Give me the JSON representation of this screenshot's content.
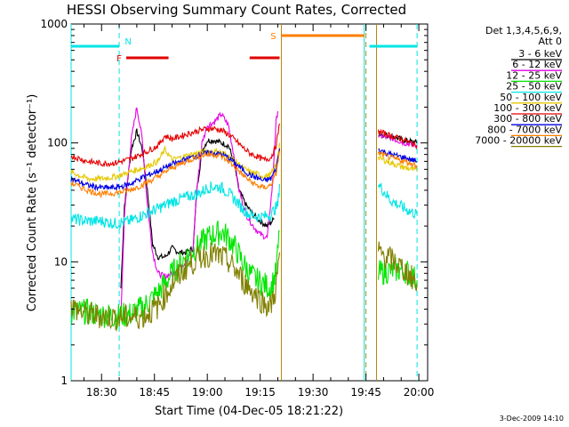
{
  "chart_data": {
    "type": "line",
    "title": "HESSI Observing Summary Count Rates, Corrected",
    "xlabel": "Start Time (04-Dec-05 18:21:22)",
    "ylabel": "Corrected Count Rate (s⁻¹ detector⁻¹)",
    "ylog": true,
    "ylim": [
      1,
      1000
    ],
    "yticks": [
      {
        "v": 1,
        "label": "1"
      },
      {
        "v": 10,
        "label": "10"
      },
      {
        "v": 100,
        "label": "100"
      },
      {
        "v": 1000,
        "label": "1000"
      }
    ],
    "xlim": [
      "18:21:22",
      "20:02:30"
    ],
    "xticks": [
      "18:30",
      "18:45",
      "19:00",
      "19:15",
      "19:30",
      "19:45",
      "20:00"
    ],
    "legend_title": [
      "Det 1,3,4,5,6,9,",
      "Att 0"
    ],
    "footer_date": "3-Dec-2009 14:10",
    "data_gap": [
      "19:21:30",
      "19:48:00"
    ],
    "flags": [
      {
        "label": "N",
        "color": "#00e5e5",
        "y": 650,
        "segments": [
          [
            "18:21:22",
            "18:35:00"
          ],
          [
            "19:46:00",
            "19:59:30"
          ]
        ]
      },
      {
        "label": "F",
        "color": "#e00000",
        "y": 520,
        "segments": [
          [
            "18:37:00",
            "18:49:00"
          ],
          [
            "19:12:00",
            "19:20:30"
          ]
        ]
      },
      {
        "label": "S",
        "color": "#ff7f00",
        "y": 800,
        "segments": [
          [
            "19:21:00",
            "19:44:30"
          ]
        ]
      }
    ],
    "vlines": [
      {
        "t": "18:21:22",
        "color": "#00e5e5",
        "dashed": false
      },
      {
        "t": "18:35:00",
        "color": "#00e5e5",
        "dashed": true
      },
      {
        "t": "19:21:00",
        "color": "#b8860b",
        "dashed": false
      },
      {
        "t": "19:44:30",
        "color": "#00e5e5",
        "dashed": false
      },
      {
        "t": "19:45:00",
        "color": "#b8860b",
        "dashed": true
      },
      {
        "t": "19:48:00",
        "color": "#b8860b",
        "dashed": false
      },
      {
        "t": "19:59:30",
        "color": "#00e5e5",
        "dashed": true
      }
    ],
    "series": [
      {
        "name": "3 - 6 keV",
        "color": "#000000",
        "points": [
          [
            "18:35:30",
            6
          ],
          [
            "18:36:30",
            30
          ],
          [
            "18:38:30",
            90
          ],
          [
            "18:40:00",
            125
          ],
          [
            "18:41:30",
            90
          ],
          [
            "18:43:00",
            40
          ],
          [
            "18:44:30",
            14
          ],
          [
            "18:46:00",
            11
          ],
          [
            "18:48:00",
            11
          ],
          [
            "18:50:00",
            13
          ],
          [
            "18:52:00",
            12
          ],
          [
            "18:54:00",
            12
          ],
          [
            "18:56:00",
            13
          ],
          [
            "18:57:00",
            40
          ],
          [
            "18:58:30",
            85
          ],
          [
            "19:00:00",
            105
          ],
          [
            "19:02:00",
            105
          ],
          [
            "19:04:00",
            100
          ],
          [
            "19:06:00",
            95
          ],
          [
            "19:07:30",
            70
          ],
          [
            "19:09:00",
            40
          ],
          [
            "19:11:00",
            30
          ],
          [
            "19:13:00",
            25
          ],
          [
            "19:15:00",
            22
          ],
          [
            "19:17:00",
            20
          ],
          [
            "19:19:00",
            23
          ]
        ],
        "points2": [
          [
            "19:48:30",
            120
          ],
          [
            "19:52:00",
            115
          ],
          [
            "19:56:00",
            105
          ],
          [
            "19:59:30",
            100
          ]
        ]
      },
      {
        "name": "6 - 12 keV",
        "color": "#e600e6",
        "points": [
          [
            "18:35:30",
            3.5
          ],
          [
            "18:36:30",
            25
          ],
          [
            "18:38:30",
            110
          ],
          [
            "18:40:00",
            200
          ],
          [
            "18:41:30",
            110
          ],
          [
            "18:43:00",
            30
          ],
          [
            "18:44:30",
            12
          ],
          [
            "18:46:00",
            8
          ],
          [
            "18:48:00",
            7.5
          ],
          [
            "18:50:00",
            8
          ],
          [
            "18:52:00",
            9
          ],
          [
            "18:54:00",
            10
          ],
          [
            "18:56:00",
            13
          ],
          [
            "18:57:00",
            40
          ],
          [
            "18:58:30",
            100
          ],
          [
            "19:00:00",
            140
          ],
          [
            "19:02:00",
            150
          ],
          [
            "19:04:00",
            175
          ],
          [
            "19:06:00",
            140
          ],
          [
            "19:07:30",
            80
          ],
          [
            "19:09:00",
            40
          ],
          [
            "19:11:00",
            25
          ],
          [
            "19:13:00",
            20
          ],
          [
            "19:15:00",
            17
          ],
          [
            "19:17:00",
            16
          ],
          [
            "19:18:30",
            45
          ],
          [
            "19:19:30",
            150
          ],
          [
            "19:20:00",
            185
          ]
        ],
        "points2": [
          [
            "19:48:30",
            115
          ],
          [
            "19:52:00",
            110
          ],
          [
            "19:56:00",
            100
          ],
          [
            "19:59:30",
            95
          ]
        ]
      },
      {
        "name": "12 - 25 keV",
        "color": "#00e600",
        "points": [
          [
            "18:21:22",
            3.8
          ],
          [
            "18:26:00",
            3.8
          ],
          [
            "18:30:00",
            3.6
          ],
          [
            "18:34:00",
            3.5
          ],
          [
            "18:38:00",
            3.6
          ],
          [
            "18:42:00",
            4.2
          ],
          [
            "18:46:00",
            5.5
          ],
          [
            "18:50:00",
            8
          ],
          [
            "18:54:00",
            11
          ],
          [
            "18:58:00",
            14
          ],
          [
            "19:00:00",
            16
          ],
          [
            "19:02:00",
            17
          ],
          [
            "19:04:00",
            18
          ],
          [
            "19:06:00",
            16
          ],
          [
            "19:08:00",
            13
          ],
          [
            "19:10:00",
            10
          ],
          [
            "19:12:00",
            8
          ],
          [
            "19:14:00",
            7
          ],
          [
            "19:16:00",
            6.5
          ],
          [
            "19:18:00",
            6
          ],
          [
            "19:19:30",
            8
          ],
          [
            "19:20:30",
            18
          ]
        ],
        "points2": [
          [
            "19:48:30",
            8
          ],
          [
            "19:52:00",
            8.5
          ],
          [
            "19:56:00",
            8.5
          ],
          [
            "19:59:30",
            7
          ]
        ]
      },
      {
        "name": "25 - 50 keV",
        "color": "#00e5e5",
        "points": [
          [
            "18:21:22",
            23
          ],
          [
            "18:26:00",
            22
          ],
          [
            "18:30:00",
            22
          ],
          [
            "18:34:00",
            21
          ],
          [
            "18:38:00",
            22
          ],
          [
            "18:42:00",
            25
          ],
          [
            "18:46:00",
            28
          ],
          [
            "18:50:00",
            32
          ],
          [
            "18:54:00",
            35
          ],
          [
            "18:58:00",
            38
          ],
          [
            "19:00:00",
            42
          ],
          [
            "19:02:00",
            43
          ],
          [
            "19:04:00",
            42
          ],
          [
            "19:06:00",
            38
          ],
          [
            "19:08:00",
            33
          ],
          [
            "19:10:00",
            28
          ],
          [
            "19:12:00",
            25
          ],
          [
            "19:14:00",
            24
          ],
          [
            "19:16:00",
            24
          ],
          [
            "19:18:00",
            25
          ],
          [
            "19:20:00",
            30
          ],
          [
            "19:20:30",
            45
          ]
        ],
        "points2": [
          [
            "19:48:30",
            45
          ],
          [
            "19:52:00",
            33
          ],
          [
            "19:56:00",
            28
          ],
          [
            "19:59:30",
            25
          ]
        ]
      },
      {
        "name": "50 - 100 keV",
        "color": "#e6c800",
        "points": [
          [
            "18:21:22",
            57
          ],
          [
            "18:26:00",
            50
          ],
          [
            "18:30:00",
            50
          ],
          [
            "18:34:00",
            52
          ],
          [
            "18:38:00",
            57
          ],
          [
            "18:42:00",
            62
          ],
          [
            "18:46:00",
            70
          ],
          [
            "18:48:00",
            88
          ],
          [
            "18:50:00",
            72
          ],
          [
            "18:54:00",
            78
          ],
          [
            "18:58:00",
            83
          ],
          [
            "19:00:00",
            85
          ],
          [
            "19:02:00",
            85
          ],
          [
            "19:04:00",
            83
          ],
          [
            "19:06:00",
            78
          ],
          [
            "19:08:00",
            70
          ],
          [
            "19:10:00",
            62
          ],
          [
            "19:12:00",
            57
          ],
          [
            "19:14:00",
            55
          ],
          [
            "19:16:00",
            52
          ],
          [
            "19:18:00",
            54
          ],
          [
            "19:19:30",
            65
          ],
          [
            "19:20:30",
            100
          ]
        ],
        "points2": [
          [
            "19:48:30",
            75
          ],
          [
            "19:52:00",
            68
          ],
          [
            "19:56:00",
            62
          ],
          [
            "19:59:30",
            58
          ]
        ]
      },
      {
        "name": "100 - 300 keV",
        "color": "#e60000",
        "points": [
          [
            "18:21:22",
            78
          ],
          [
            "18:26:00",
            70
          ],
          [
            "18:30:00",
            67
          ],
          [
            "18:34:00",
            68
          ],
          [
            "18:38:00",
            73
          ],
          [
            "18:42:00",
            82
          ],
          [
            "18:46:00",
            95
          ],
          [
            "18:48:00",
            115
          ],
          [
            "18:50:00",
            108
          ],
          [
            "18:54:00",
            118
          ],
          [
            "18:58:00",
            128
          ],
          [
            "19:00:00",
            132
          ],
          [
            "19:02:00",
            132
          ],
          [
            "19:04:00",
            128
          ],
          [
            "19:06:00",
            118
          ],
          [
            "19:08:00",
            105
          ],
          [
            "19:10:00",
            92
          ],
          [
            "19:12:00",
            82
          ],
          [
            "19:14:00",
            77
          ],
          [
            "19:16:00",
            72
          ],
          [
            "19:18:00",
            75
          ],
          [
            "19:19:30",
            95
          ],
          [
            "19:20:30",
            145
          ]
        ],
        "points2": [
          [
            "19:48:30",
            125
          ],
          [
            "19:52:00",
            115
          ],
          [
            "19:56:00",
            105
          ],
          [
            "19:59:30",
            95
          ]
        ]
      },
      {
        "name": "300 - 800 keV",
        "color": "#0000e6",
        "points": [
          [
            "18:21:22",
            50
          ],
          [
            "18:26:00",
            44
          ],
          [
            "18:30:00",
            42
          ],
          [
            "18:34:00",
            42
          ],
          [
            "18:38:00",
            45
          ],
          [
            "18:42:00",
            52
          ],
          [
            "18:46:00",
            58
          ],
          [
            "18:50:00",
            66
          ],
          [
            "18:54:00",
            73
          ],
          [
            "18:58:00",
            80
          ],
          [
            "19:00:00",
            82
          ],
          [
            "19:02:00",
            82
          ],
          [
            "19:04:00",
            80
          ],
          [
            "19:06:00",
            75
          ],
          [
            "19:08:00",
            67
          ],
          [
            "19:10:00",
            60
          ],
          [
            "19:12:00",
            54
          ],
          [
            "19:14:00",
            51
          ],
          [
            "19:16:00",
            48
          ],
          [
            "19:18:00",
            50
          ],
          [
            "19:19:30",
            60
          ],
          [
            "19:20:30",
            90
          ]
        ],
        "points2": [
          [
            "19:48:30",
            88
          ],
          [
            "19:52:00",
            80
          ],
          [
            "19:56:00",
            75
          ],
          [
            "19:59:30",
            70
          ]
        ]
      },
      {
        "name": "800 - 7000 keV",
        "color": "#ff7f00",
        "points": [
          [
            "18:21:22",
            46
          ],
          [
            "18:26:00",
            40
          ],
          [
            "18:30:00",
            37
          ],
          [
            "18:34:00",
            38
          ],
          [
            "18:38:00",
            40
          ],
          [
            "18:42:00",
            45
          ],
          [
            "18:46:00",
            52
          ],
          [
            "18:50:00",
            62
          ],
          [
            "18:54:00",
            70
          ],
          [
            "18:58:00",
            78
          ],
          [
            "19:00:00",
            80
          ],
          [
            "19:02:00",
            80
          ],
          [
            "19:04:00",
            77
          ],
          [
            "19:06:00",
            70
          ],
          [
            "19:08:00",
            62
          ],
          [
            "19:10:00",
            54
          ],
          [
            "19:12:00",
            48
          ],
          [
            "19:14:00",
            44
          ],
          [
            "19:16:00",
            42
          ],
          [
            "19:18:00",
            44
          ],
          [
            "19:19:30",
            55
          ],
          [
            "19:20:30",
            85
          ]
        ],
        "points2": [
          [
            "19:48:30",
            82
          ],
          [
            "19:52:00",
            75
          ],
          [
            "19:56:00",
            70
          ],
          [
            "19:59:30",
            65
          ]
        ]
      },
      {
        "name": "7000 - 20000 keV",
        "color": "#808000",
        "points": [
          [
            "18:21:22",
            4.2
          ],
          [
            "18:26:00",
            3.6
          ],
          [
            "18:30:00",
            3.5
          ],
          [
            "18:34:00",
            3.4
          ],
          [
            "18:38:00",
            3.4
          ],
          [
            "18:42:00",
            3.5
          ],
          [
            "18:46:00",
            4.2
          ],
          [
            "18:50:00",
            6.5
          ],
          [
            "18:54:00",
            9
          ],
          [
            "18:58:00",
            11
          ],
          [
            "19:00:00",
            11.5
          ],
          [
            "19:02:00",
            11.5
          ],
          [
            "19:04:00",
            11
          ],
          [
            "19:06:00",
            10
          ],
          [
            "19:08:00",
            8.5
          ],
          [
            "19:10:00",
            7
          ],
          [
            "19:12:00",
            6
          ],
          [
            "19:14:00",
            5.2
          ],
          [
            "19:16:00",
            4.5
          ],
          [
            "19:18:00",
            4.2
          ],
          [
            "19:19:30",
            6
          ],
          [
            "19:20:30",
            12
          ]
        ],
        "points2": [
          [
            "19:48:30",
            12
          ],
          [
            "19:52:00",
            10.5
          ],
          [
            "19:56:00",
            8.5
          ],
          [
            "19:59:30",
            6.5
          ]
        ]
      }
    ]
  }
}
